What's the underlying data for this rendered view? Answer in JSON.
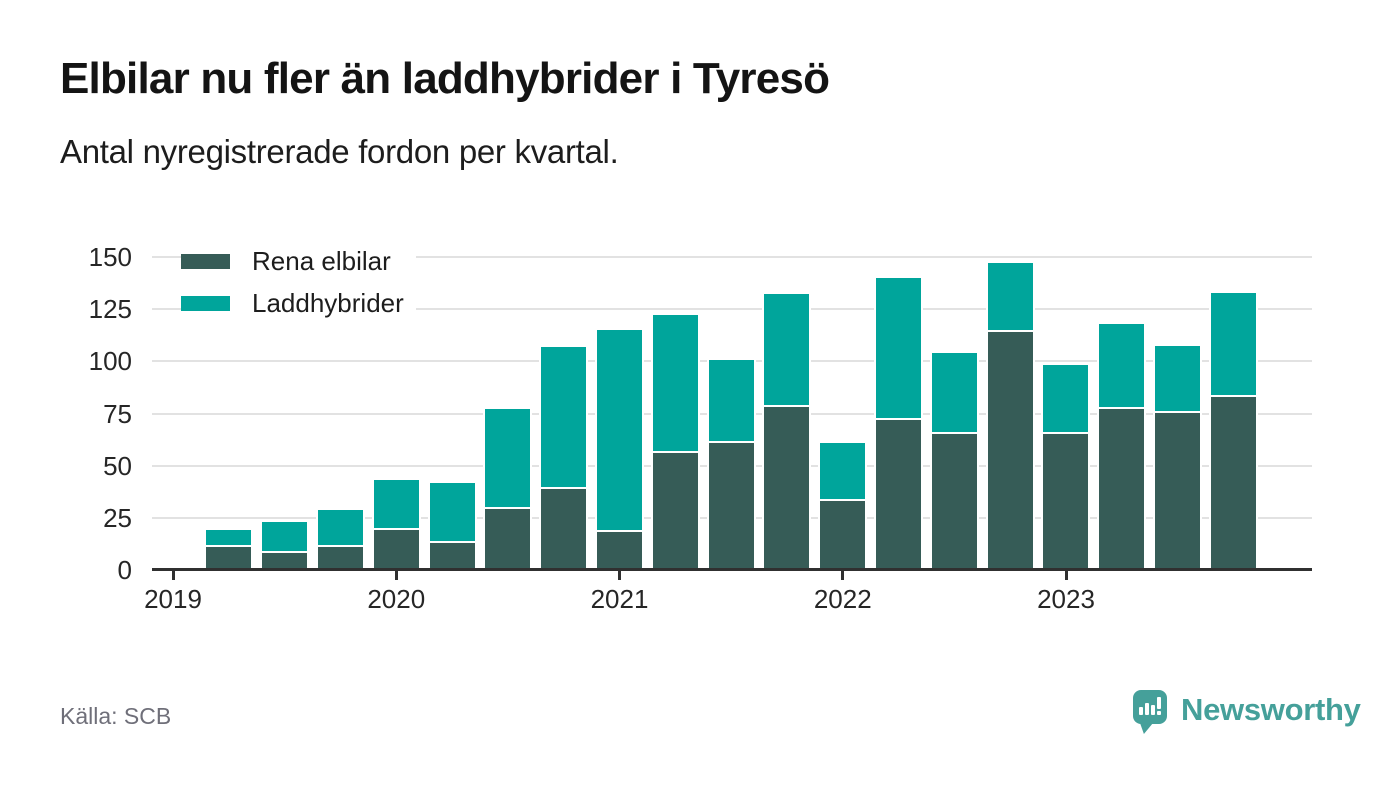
{
  "header": {
    "title": "Elbilar nu fler än laddhybrider i Tyresö",
    "subtitle": "Antal nyregistrerade fordon per kvartal."
  },
  "legend": {
    "items": [
      {
        "label": "Rena elbilar",
        "color": "#365c57"
      },
      {
        "label": "Laddhybrider",
        "color": "#00a59b"
      }
    ]
  },
  "chart_data": {
    "type": "bar",
    "stacked": true,
    "title": "Elbilar nu fler än laddhybrider i Tyresö",
    "subtitle": "Antal nyregistrerade fordon per kvartal.",
    "x": [
      "2019 K2",
      "2019 K3",
      "2019 K4",
      "2020 K1",
      "2020 K2",
      "2020 K3",
      "2020 K4",
      "2021 K1",
      "2021 K2",
      "2021 K3",
      "2021 K4",
      "2022 K1",
      "2022 K2",
      "2022 K3",
      "2022 K4",
      "2023 K1",
      "2023 K2",
      "2023 K3",
      "2023 K4"
    ],
    "series": [
      {
        "name": "Rena elbilar",
        "color": "#365c57",
        "values": [
          12,
          9,
          12,
          20,
          14,
          30,
          40,
          19,
          57,
          62,
          79,
          34,
          73,
          66,
          115,
          66,
          78,
          76,
          84
        ]
      },
      {
        "name": "Laddhybrider",
        "color": "#00a59b",
        "values": [
          7,
          14,
          17,
          23,
          28,
          47,
          67,
          96,
          65,
          39,
          53,
          27,
          67,
          38,
          32,
          32,
          40,
          31,
          49
        ]
      }
    ],
    "totals": [
      19,
      23,
      29,
      43,
      42,
      77,
      107,
      115,
      122,
      101,
      132,
      61,
      140,
      104,
      147,
      98,
      118,
      107,
      133
    ],
    "x_tick_labels": [
      "2019",
      "2020",
      "2021",
      "2022",
      "2023"
    ],
    "y_ticks": [
      0,
      25,
      50,
      75,
      100,
      125,
      150
    ],
    "ylim": [
      0,
      150
    ],
    "grid": "horizontal",
    "legend_position": "top-left"
  },
  "footer": {
    "source": "Källa: SCB",
    "brand": "Newsworthy"
  },
  "colors": {
    "elbilar": "#365c57",
    "laddhybrider": "#00a59b",
    "axis": "#303030",
    "grid": "#e2e2e2",
    "brand": "#45a09a"
  }
}
